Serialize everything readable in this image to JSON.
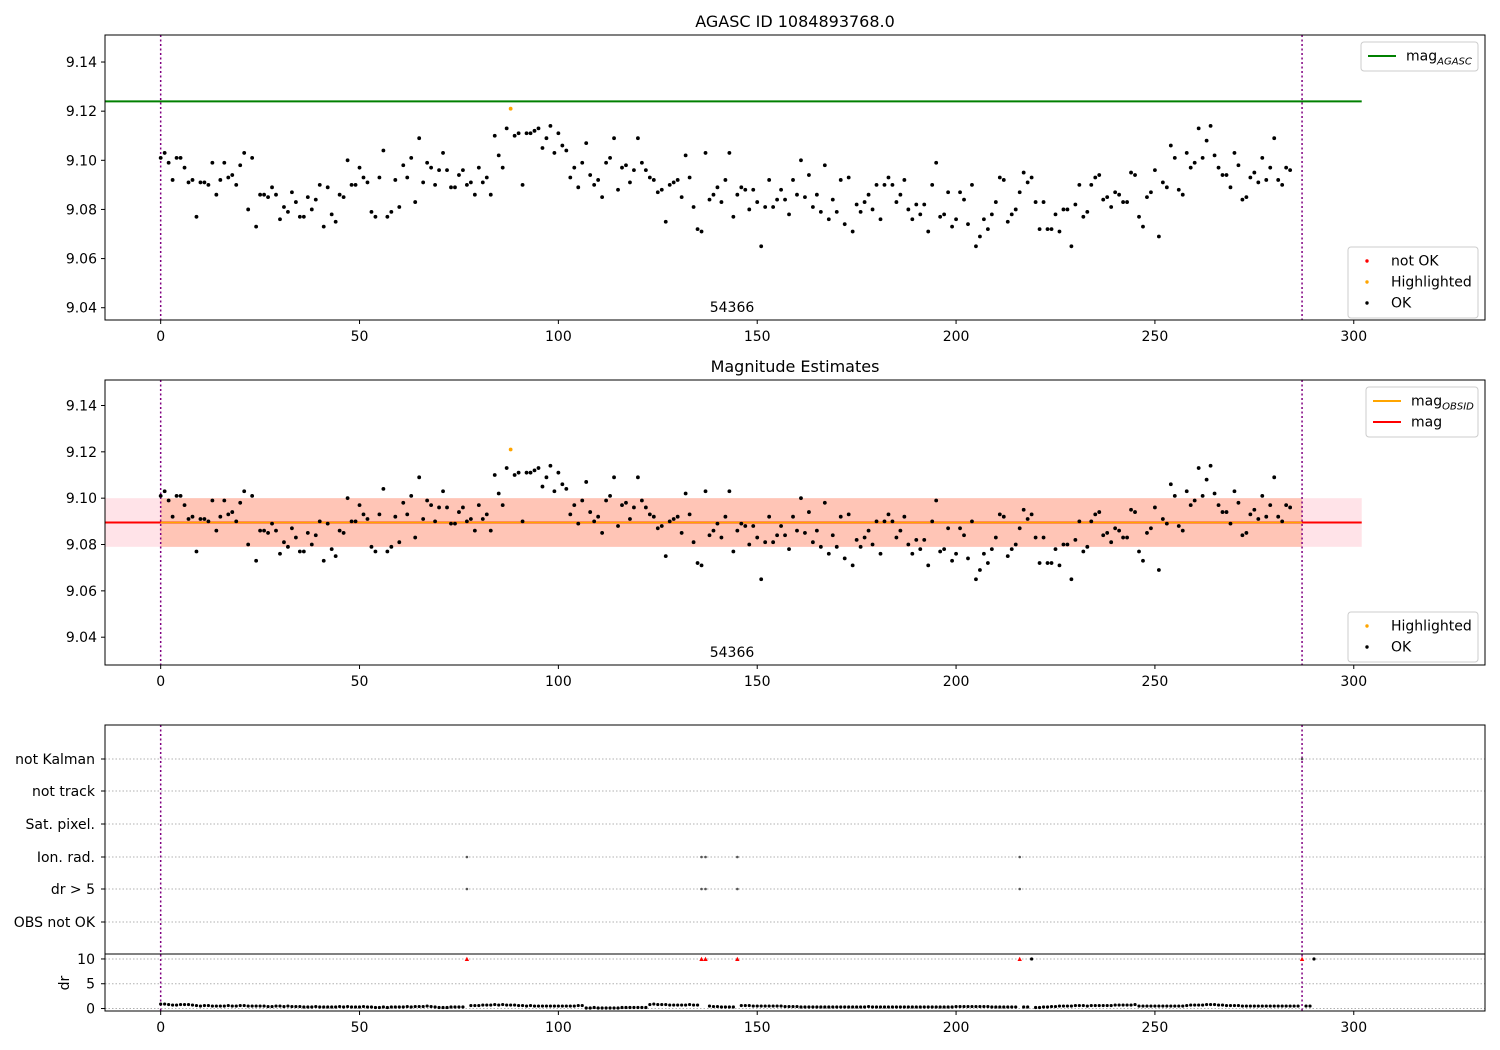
{
  "chart_data": [
    {
      "type": "scatter",
      "title": "AGASC ID 1084893768.0",
      "annotation": "54366",
      "xlim": [
        -14,
        333
      ],
      "ylim": [
        9.035,
        9.151
      ],
      "x_ticks": [
        0,
        50,
        100,
        150,
        200,
        250,
        300
      ],
      "y_ticks": [
        9.04,
        9.06,
        9.08,
        9.1,
        9.12,
        9.14
      ],
      "vlines": [
        0,
        287
      ],
      "hlines": [
        {
          "name": "mag",
          "subscript": "AGASC",
          "y": 9.124,
          "x_range": [
            -14,
            302
          ],
          "color": "#008000"
        }
      ],
      "legend_upper": [
        {
          "name": "mag",
          "subscript": "AGASC",
          "color": "#008000",
          "kind": "line"
        }
      ],
      "legend_lower": [
        {
          "name": "not OK",
          "color": "#ff0000",
          "kind": "dot"
        },
        {
          "name": "Highlighted",
          "color": "#ffa500",
          "kind": "dot"
        },
        {
          "name": "OK",
          "color": "#000000",
          "kind": "dot"
        }
      ],
      "highlighted": [
        {
          "x": 88,
          "y": 9.121
        }
      ],
      "series": [
        {
          "name": "OK",
          "color": "#000000",
          "x_start": 0,
          "x_step": 1,
          "values": [
            9.101,
            9.103,
            9.099,
            9.092,
            9.101,
            9.101,
            9.097,
            9.091,
            9.092,
            9.077,
            9.091,
            9.091,
            9.09,
            9.099,
            9.086,
            9.092,
            9.099,
            9.093,
            9.094,
            9.09,
            9.098,
            9.103,
            9.08,
            9.101,
            9.073,
            9.086,
            9.086,
            9.085,
            9.089,
            9.086,
            9.076,
            9.081,
            9.079,
            9.087,
            9.083,
            9.077,
            9.077,
            9.085,
            9.08,
            9.084,
            9.09,
            9.073,
            9.089,
            9.078,
            9.075,
            9.086,
            9.085,
            9.1,
            9.09,
            9.09,
            9.097,
            9.093,
            9.091,
            9.079,
            9.077,
            9.093,
            9.104,
            9.077,
            9.079,
            9.092,
            9.081,
            9.098,
            9.093,
            9.101,
            9.083,
            9.109,
            9.091,
            9.099,
            9.097,
            9.09,
            9.096,
            9.103,
            9.096,
            9.089,
            9.089,
            9.094,
            9.096,
            9.09,
            9.091,
            9.086,
            9.097,
            9.091,
            9.093,
            9.086,
            9.11,
            9.102,
            9.097,
            9.113,
            9.121,
            9.11,
            9.111,
            9.09,
            9.111,
            9.111,
            9.112,
            9.113,
            9.105,
            9.109,
            9.114,
            9.103,
            9.111,
            9.106,
            9.104,
            9.093,
            9.097,
            9.089,
            9.099,
            9.107,
            9.094,
            9.09,
            9.092,
            9.085,
            9.099,
            9.101,
            9.109,
            9.088,
            9.097,
            9.098,
            9.091,
            9.096,
            9.109,
            9.099,
            9.096,
            9.093,
            9.092,
            9.087,
            9.088,
            9.075,
            9.09,
            9.091,
            9.092,
            9.085,
            9.102,
            9.093,
            9.081,
            9.072,
            9.071,
            9.103,
            9.084,
            9.086,
            9.089,
            9.083,
            9.092,
            9.103,
            9.077,
            9.086,
            9.089,
            9.088,
            9.08,
            9.088,
            9.083,
            9.065,
            9.081,
            9.092,
            9.081,
            9.084,
            9.088,
            9.084,
            9.078,
            9.092,
            9.086,
            9.1,
            9.085,
            9.094,
            9.081,
            9.086,
            9.079,
            9.098,
            9.076,
            9.084,
            9.079,
            9.092,
            9.074,
            9.093,
            9.071,
            9.082,
            9.079,
            9.083,
            9.086,
            9.08,
            9.09,
            9.076,
            9.09,
            9.093,
            9.09,
            9.083,
            9.086,
            9.092,
            9.08,
            9.076,
            9.082,
            9.078,
            9.082,
            9.071,
            9.09,
            9.099,
            9.077,
            9.078,
            9.087,
            9.073,
            9.076,
            9.087,
            9.084,
            9.074,
            9.09,
            9.065,
            9.069,
            9.076,
            9.072,
            9.078,
            9.083,
            9.093,
            9.092,
            9.075,
            9.078,
            9.08,
            9.087,
            9.095,
            9.091,
            9.093,
            9.083,
            9.072,
            9.083,
            9.072,
            9.072,
            9.078,
            9.071,
            9.08,
            9.08,
            9.065,
            9.082,
            9.09,
            9.077,
            9.079,
            9.09,
            9.093,
            9.094,
            9.084,
            9.085,
            9.081,
            9.087,
            9.086,
            9.083,
            9.083,
            9.095,
            9.094,
            9.077,
            9.073,
            9.085,
            9.087,
            9.096,
            9.069,
            9.091,
            9.089,
            9.106,
            9.101,
            9.088,
            9.086,
            9.103,
            9.097,
            9.099,
            9.113,
            9.101,
            9.108,
            9.114,
            9.102,
            9.097,
            9.094,
            9.094,
            9.089,
            9.103,
            9.098,
            9.084,
            9.085,
            9.093,
            9.095,
            9.091,
            9.101,
            9.092,
            9.097,
            9.109,
            9.092,
            9.09,
            9.097,
            9.096
          ]
        }
      ]
    },
    {
      "type": "scatter",
      "title": "Magnitude Estimates",
      "annotation": "54366",
      "xlim": [
        -14,
        333
      ],
      "ylim": [
        9.028,
        9.151
      ],
      "x_ticks": [
        0,
        50,
        100,
        150,
        200,
        250,
        300
      ],
      "y_ticks": [
        9.04,
        9.06,
        9.08,
        9.1,
        9.12,
        9.14
      ],
      "vlines": [
        0,
        287
      ],
      "mag_line": {
        "y": 9.0895,
        "x_range": [
          -14,
          302
        ],
        "color": "#ff0000"
      },
      "mag_obsid_line": {
        "y": 9.0895,
        "x_range": [
          0,
          287
        ],
        "color": "#ffa500"
      },
      "bands": [
        {
          "y": [
            9.079,
            9.1
          ],
          "x_range": [
            -14,
            302
          ],
          "color": "#ffc0cb"
        },
        {
          "y": [
            9.079,
            9.1
          ],
          "x_range": [
            0,
            287
          ],
          "color": "#ffa07a"
        }
      ],
      "legend_upper": [
        {
          "name": "mag",
          "subscript": "OBSID",
          "color": "#ffa500",
          "kind": "line"
        },
        {
          "name": "mag",
          "color": "#ff0000",
          "kind": "line"
        }
      ],
      "legend_lower": [
        {
          "name": "Highlighted",
          "color": "#ffa500",
          "kind": "dot"
        },
        {
          "name": "OK",
          "color": "#000000",
          "kind": "dot"
        }
      ],
      "highlighted": [
        {
          "x": 88,
          "y": 9.121
        }
      ],
      "series_ref": 0
    },
    {
      "type": "scatter",
      "xlim": [
        -14,
        333
      ],
      "x_ticks": [
        0,
        50,
        100,
        150,
        200,
        250,
        300
      ],
      "vlines": [
        0,
        287
      ],
      "flag_rows": [
        "not Kalman",
        "not track",
        "Sat. pixel.",
        "Ion. rad.",
        "dr > 5",
        "OBS not OK"
      ],
      "flags": {
        "Ion. rad.": [
          77,
          136,
          137,
          145,
          216
        ],
        "dr > 5": [
          77,
          136,
          137,
          145,
          216
        ],
        "not Kalman": [
          287
        ]
      },
      "dr_panel": {
        "ylabel": "dr",
        "y_ticks": [
          0,
          5,
          10
        ],
        "ylim": [
          -0.5,
          11
        ],
        "clipped_value": 10,
        "clipped_x": [
          77,
          136,
          137,
          145,
          216,
          287
        ],
        "values": [
          0.9,
          0.9,
          0.8,
          0.7,
          0.7,
          0.8,
          0.8,
          0.8,
          0.7,
          0.6,
          0.5,
          0.6,
          0.6,
          0.5,
          0.5,
          0.5,
          0.5,
          0.6,
          0.5,
          0.5,
          0.6,
          0.6,
          0.5,
          0.5,
          0.5,
          0.5,
          0.5,
          0.4,
          0.4,
          0.5,
          0.5,
          0.4,
          0.5,
          0.4,
          0.4,
          0.4,
          0.3,
          0.3,
          0.3,
          0.4,
          0.3,
          0.3,
          0.3,
          0.3,
          0.3,
          0.4,
          0.3,
          0.4,
          0.3,
          0.3,
          0.3,
          0.4,
          0.3,
          0.3,
          0.2,
          0.2,
          0.3,
          0.2,
          0.3,
          0.3,
          0.3,
          0.3,
          0.4,
          0.3,
          0.4,
          0.4,
          0.4,
          0.5,
          0.4,
          0.3,
          0.2,
          0.2,
          0.2,
          0.3,
          0.3,
          0.3,
          0.3,
          10,
          0.6,
          0.6,
          0.6,
          0.7,
          0.7,
          0.7,
          0.8,
          0.7,
          0.8,
          0.7,
          0.7,
          0.7,
          0.6,
          0.6,
          0.5,
          0.6,
          0.5,
          0.5,
          0.5,
          0.5,
          0.5,
          0.5,
          0.5,
          0.5,
          0.5,
          0.5,
          0.5,
          0.6,
          0.6,
          0.1,
          0.1,
          0.2,
          0.1,
          0.1,
          0.1,
          0.1,
          0.1,
          0.1,
          0.2,
          0.2,
          0.2,
          0.2,
          0.2,
          0.2,
          0.2,
          0.8,
          0.9,
          0.8,
          0.8,
          0.8,
          0.7,
          0.7,
          0.7,
          0.7,
          0.7,
          0.8,
          0.7,
          0.7,
          10,
          10,
          0.5,
          0.4,
          0.4,
          0.3,
          0.3,
          0.3,
          0.3,
          10,
          0.6,
          0.6,
          0.6,
          0.5,
          0.5,
          0.5,
          0.5,
          0.5,
          0.5,
          0.5,
          0.5,
          0.4,
          0.4,
          0.4,
          0.4,
          0.3,
          0.3,
          0.3,
          0.3,
          0.3,
          0.3,
          0.3,
          0.3,
          0.3,
          0.3,
          0.3,
          0.3,
          0.3,
          0.3,
          0.3,
          0.3,
          0.3,
          0.4,
          0.3,
          0.3,
          0.3,
          0.3,
          0.3,
          0.3,
          0.3,
          0.3,
          0.3,
          0.3,
          0.3,
          0.3,
          0.3,
          0.3,
          0.3,
          0.3,
          0.3,
          0.3,
          0.3,
          0.3,
          0.3,
          0.4,
          0.4,
          0.4,
          0.4,
          0.4,
          0.4,
          0.4,
          0.4,
          0.4,
          0.3,
          0.3,
          0.3,
          0.3,
          0.3,
          0.3,
          0.3,
          0.3,
          0.3,
          0.3,
          10,
          0.2,
          0.2,
          0.3,
          0.3,
          0.4,
          0.4,
          0.5,
          0.5,
          0.5,
          0.5,
          0.6,
          0.6,
          0.6,
          0.5,
          0.6,
          0.6,
          0.6,
          0.6,
          0.6,
          0.6,
          0.7,
          0.7,
          0.7,
          0.7,
          0.7,
          0.8,
          0.5,
          0.5,
          0.5,
          0.5,
          0.5,
          0.5,
          0.5,
          0.5,
          0.5,
          0.5,
          0.5,
          0.5,
          0.6,
          0.7,
          0.7,
          0.7,
          0.7,
          0.8,
          0.8,
          0.8,
          0.7,
          0.7,
          0.6,
          0.6,
          0.6,
          0.6,
          0.5,
          0.5,
          0.5,
          0.5,
          0.5,
          0.5,
          0.5,
          0.5,
          0.5,
          0.5,
          0.5,
          0.5,
          0.5,
          0.5,
          0.5,
          0.5,
          0.5,
          0.5,
          10
        ]
      }
    }
  ]
}
